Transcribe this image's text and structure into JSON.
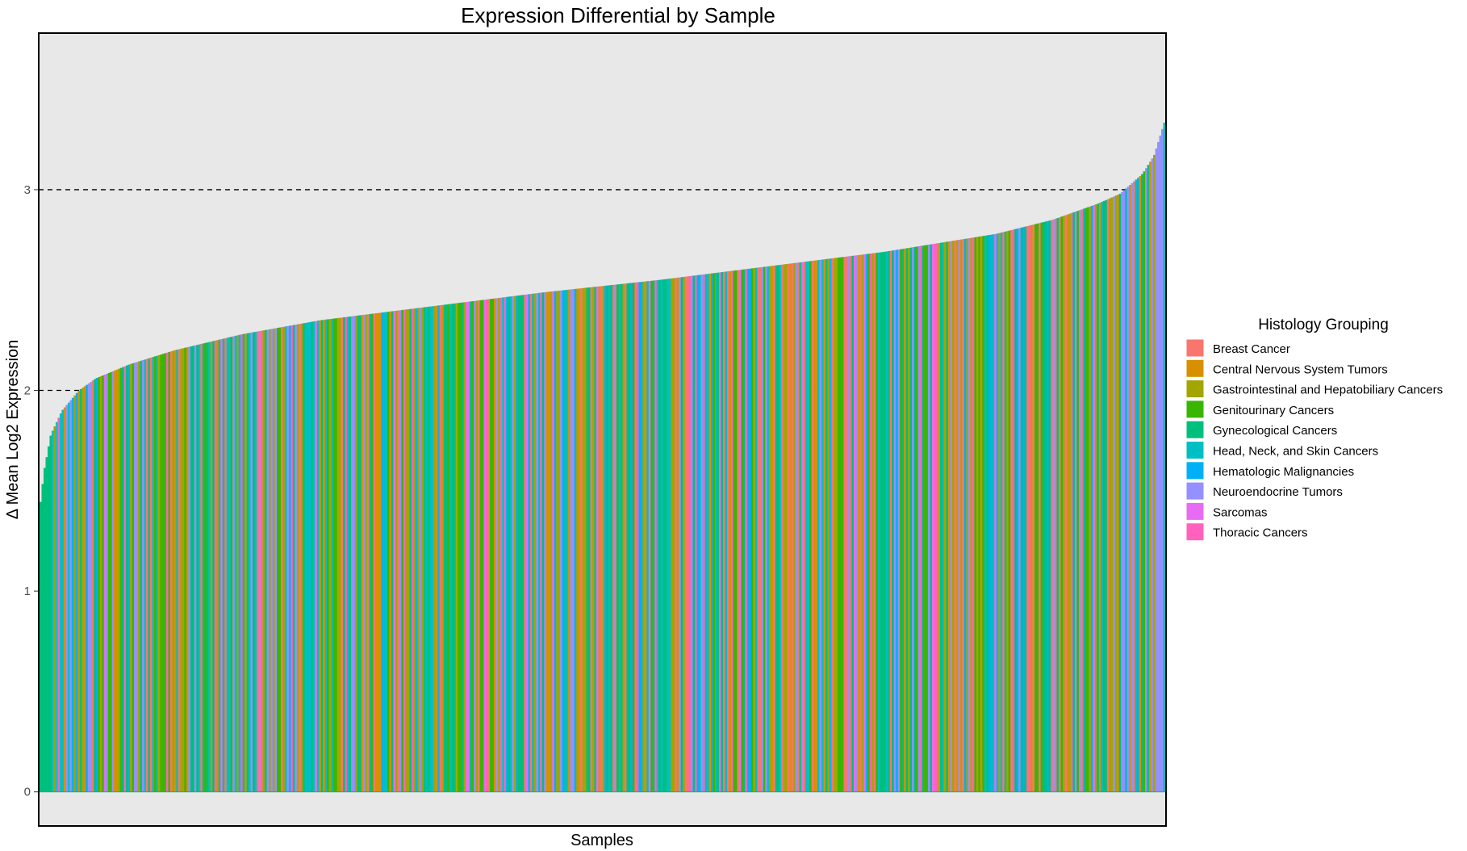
{
  "chart_data": {
    "type": "bar",
    "title": "Expression Differential by Sample",
    "xlabel": "Samples",
    "ylabel": "Δ Mean Log2 Expression",
    "ylim": [
      -0.17,
      3.78
    ],
    "yticks": [
      0,
      1,
      2,
      3
    ],
    "reference_lines": [
      2,
      3
    ],
    "x_tick_labels": "none",
    "sorted": "ascending",
    "sample_count": 560,
    "value_profile": {
      "x_fraction": [
        0,
        0.004,
        0.01,
        0.02,
        0.035,
        0.05,
        0.08,
        0.12,
        0.18,
        0.25,
        0.35,
        0.45,
        0.55,
        0.65,
        0.75,
        0.85,
        0.9,
        0.94,
        0.96,
        0.98,
        0.99,
        1.0
      ],
      "y": [
        1.4,
        1.6,
        1.78,
        1.9,
        2.0,
        2.06,
        2.13,
        2.2,
        2.28,
        2.35,
        2.42,
        2.49,
        2.55,
        2.62,
        2.69,
        2.78,
        2.85,
        2.93,
        2.98,
        3.08,
        3.17,
        3.35
      ]
    },
    "legend": {
      "title": "Histology Grouping",
      "position": "right",
      "items": [
        {
          "label": "Breast Cancer",
          "color": "#F8766D"
        },
        {
          "label": "Central Nervous System Tumors",
          "color": "#D89000"
        },
        {
          "label": "Gastrointestinal and Hepatobiliary Cancers",
          "color": "#A3A500"
        },
        {
          "label": "Genitourinary Cancers",
          "color": "#39B600"
        },
        {
          "label": "Gynecological Cancers",
          "color": "#00BF7D"
        },
        {
          "label": "Head, Neck, and Skin Cancers",
          "color": "#00BFC4"
        },
        {
          "label": "Hematologic Malignancies",
          "color": "#00B0F6"
        },
        {
          "label": "Neuroendocrine Tumors",
          "color": "#9590FF"
        },
        {
          "label": "Sarcomas",
          "color": "#E76BF3"
        },
        {
          "label": "Thoracic Cancers",
          "color": "#FF62BC"
        }
      ]
    },
    "panel_background": "#E8E8E8"
  }
}
